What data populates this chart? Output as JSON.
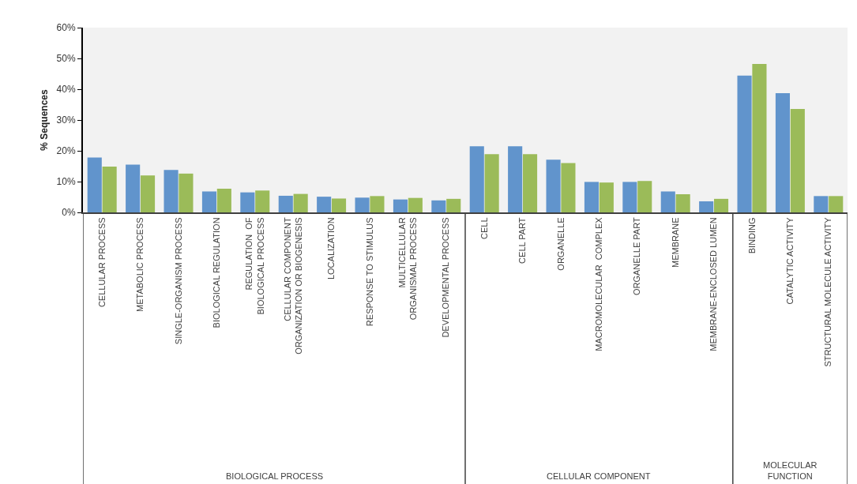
{
  "chart_data": {
    "type": "bar",
    "ylabel": "% Sequences",
    "categories": [
      "CELLULAR PROCESS",
      "METABOLIC PROCESS",
      "SINGLE-ORGANISM PROCESS",
      "BIOLOGICAL REGULATION",
      "REGULATION  OF BIOLOGICAL PROCESS",
      "CELLULAR COMPONENT ORGANIZATION OR BIOGENESIS",
      "LOCALIZATION",
      "RESPONSE TO STIMULUS",
      "MULTICELLULAR  ORGANISMAL PROCESS",
      "DEVELOPMENTAL PROCESS",
      "CELL",
      "CELL PART",
      "ORGANELLE",
      "MACROMOLECULAR  COMPLEX",
      "ORGANELLE PART",
      "MEMBRANE",
      "MEMBRANE-ENCLOSED LUMEN",
      "BINDING",
      "CATALYTIC ACTIVITY",
      "STRUCTURAL MOLECULE ACTIVITY"
    ],
    "series": [
      {
        "color": "#6194cc",
        "values": [
          17.8,
          15.5,
          13.8,
          6.8,
          6.5,
          5.4,
          5.1,
          4.8,
          4.2,
          3.9,
          21.5,
          21.5,
          17.1,
          9.9,
          9.9,
          6.8,
          3.6,
          44.4,
          38.7,
          5.3
        ]
      },
      {
        "color": "#9bbb59",
        "values": [
          14.9,
          12.0,
          12.6,
          7.7,
          7.1,
          6.0,
          4.5,
          5.3,
          4.7,
          4.4,
          18.9,
          18.9,
          16.0,
          9.7,
          10.2,
          5.9,
          4.4,
          48.2,
          33.6,
          5.3
        ]
      }
    ],
    "ylim": [
      0,
      60
    ],
    "yticks": [
      {
        "value": 0,
        "label": "0%"
      },
      {
        "value": 10,
        "label": "10%"
      },
      {
        "value": 20,
        "label": "20%"
      },
      {
        "value": 30,
        "label": "30%"
      },
      {
        "value": 40,
        "label": "40%"
      },
      {
        "value": 50,
        "label": "50%"
      },
      {
        "value": 60,
        "label": "60%"
      }
    ],
    "annotations": [
      "BIOLOGICAL PROCESS",
      "CELLULAR COMPONENT",
      "MOLECULAR FUNCTION"
    ]
  }
}
